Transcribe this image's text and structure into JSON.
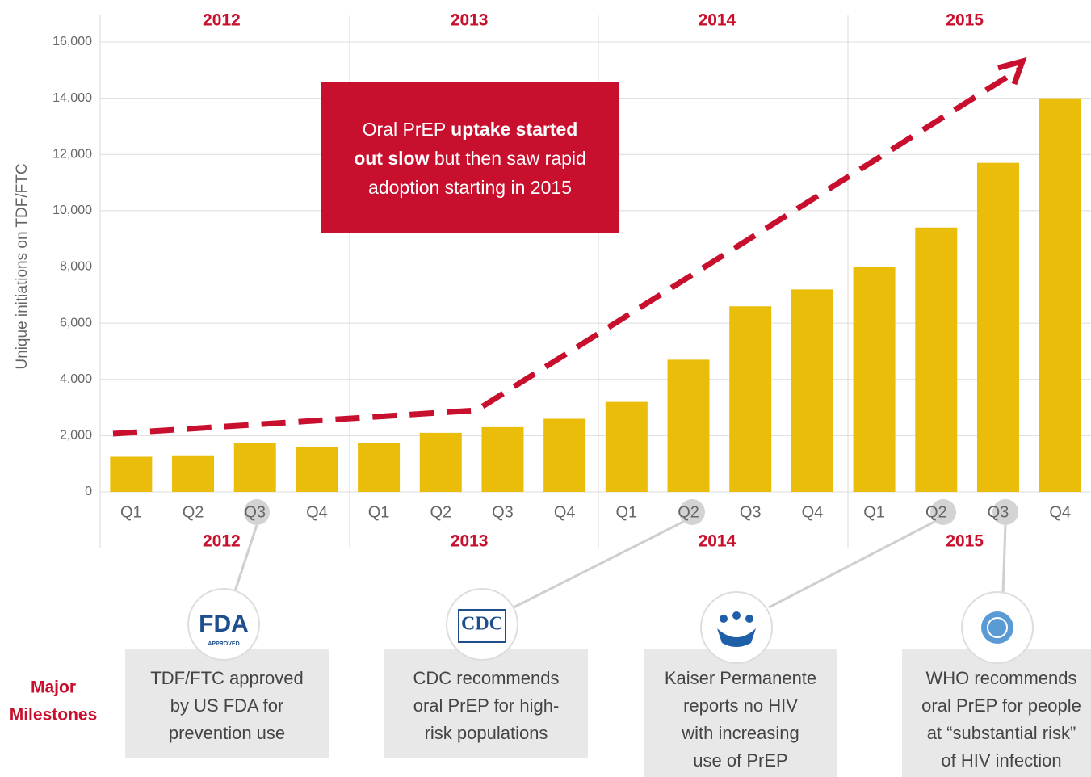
{
  "chart_data": {
    "type": "bar",
    "y_label": "Unique initiations on TDF/FTC",
    "groups": [
      "2012",
      "2013",
      "2014",
      "2015"
    ],
    "categories": [
      "Q1",
      "Q2",
      "Q3",
      "Q4",
      "Q1",
      "Q2",
      "Q3",
      "Q4",
      "Q1",
      "Q2",
      "Q3",
      "Q4",
      "Q1",
      "Q2",
      "Q3",
      "Q4"
    ],
    "values": [
      1250,
      1300,
      1750,
      1600,
      1750,
      2100,
      2300,
      2600,
      3200,
      4700,
      6600,
      7200,
      8000,
      9400,
      11700,
      14000
    ],
    "color": "#ebbd0b",
    "ylim": [
      0,
      16000
    ],
    "yticks": [
      0,
      {
        "value": 2000,
        "label": "2,000"
      },
      {
        "value": 4000,
        "label": "4,000"
      },
      {
        "value": 6000,
        "label": "6,000"
      },
      {
        "value": 8000,
        "label": "8,000"
      },
      {
        "value": 10000,
        "label": "10,000"
      },
      {
        "value": 12000,
        "label": "12,000"
      },
      {
        "value": 14000,
        "label": "14,000"
      },
      {
        "value": 16000,
        "label": "16,000"
      }
    ],
    "grid": true,
    "annotation": [
      [
        {
          "text": "Oral PrEP ",
          "bold": false
        },
        {
          "text": "uptake started",
          "bold": true
        }
      ],
      [
        {
          "text": "out slow",
          "bold": true
        },
        {
          "text": " but then saw rapid",
          "bold": false
        }
      ],
      [
        {
          "text": "adoption starting in 2015",
          "bold": false
        }
      ]
    ],
    "milestones_title": [
      "Major",
      "Milestones"
    ],
    "milestones": [
      {
        "logo": [
          "FDA",
          "APPROVED"
        ],
        "lines": [
          "TDF/FTC approved",
          "by US FDA for",
          "prevention use"
        ]
      },
      {
        "logo": [
          "CDC"
        ],
        "lines": [
          "CDC recommends",
          "oral PrEP for high-",
          "risk populations"
        ]
      },
      {
        "logo": [],
        "lines": [
          "Kaiser Permanente",
          "reports no HIV",
          "with increasing",
          "use of PrEP"
        ]
      },
      {
        "logo": [],
        "lines": [
          "WHO recommends",
          "oral PrEP for people",
          "at “substantial risk”",
          "of HIV infection"
        ]
      }
    ]
  }
}
